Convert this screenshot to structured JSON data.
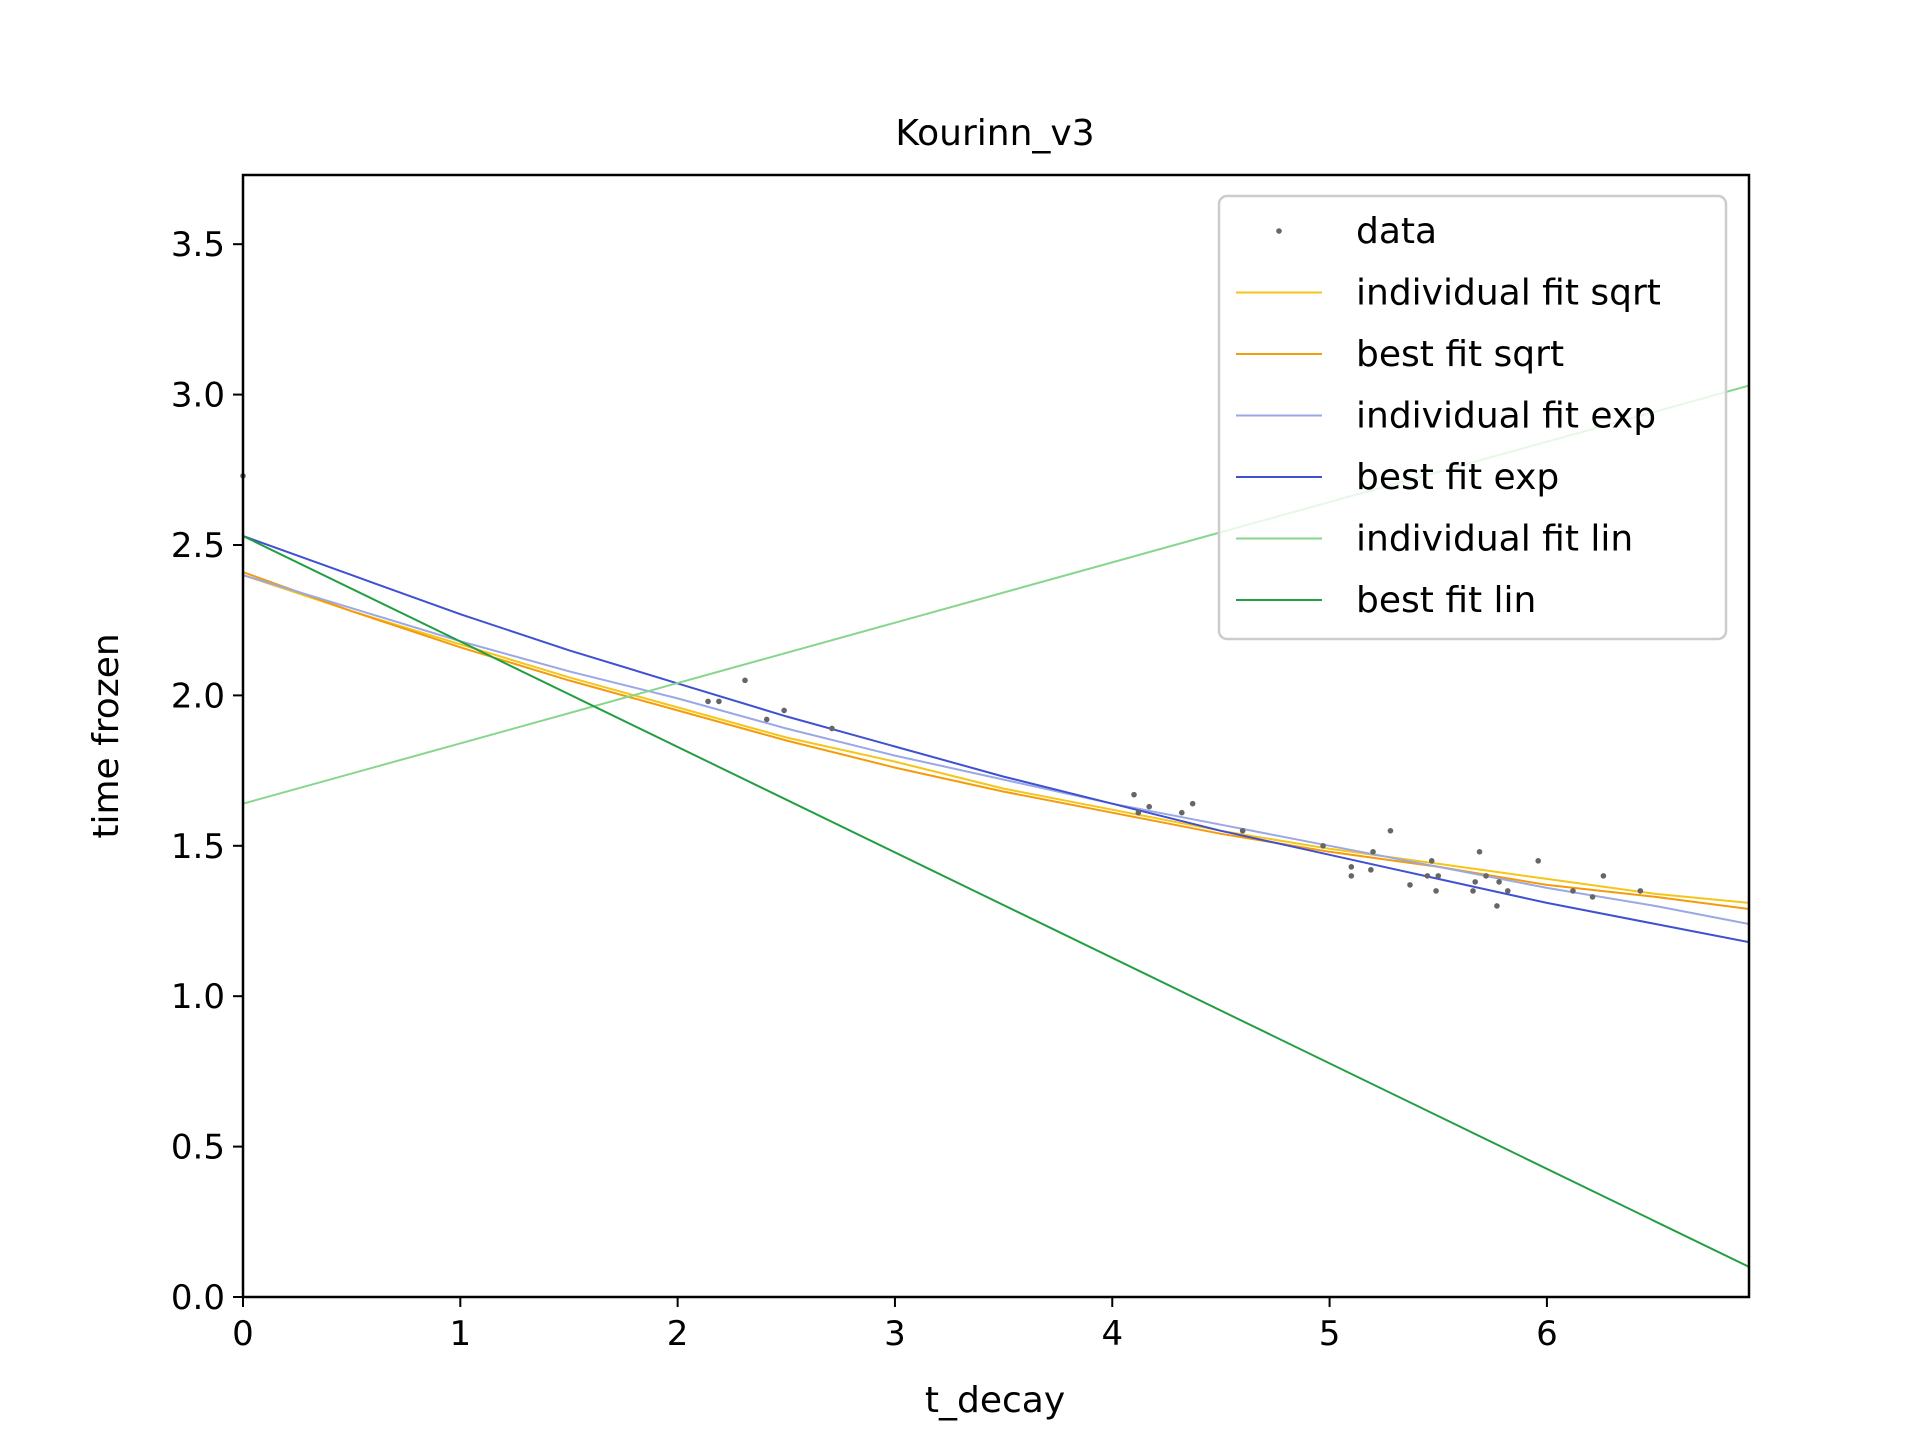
{
  "chart_data": {
    "type": "line",
    "title": "Kourinn_v3",
    "xlabel": "t_decay",
    "ylabel": "time frozen",
    "xlim": [
      0,
      6.93
    ],
    "ylim": [
      0,
      3.73
    ],
    "x_ticks": [
      0,
      1,
      2,
      3,
      4,
      5,
      6
    ],
    "x_tick_labels": [
      "0",
      "1",
      "2",
      "3",
      "4",
      "5",
      "6"
    ],
    "y_ticks": [
      0,
      0.5,
      1,
      1.5,
      2,
      2.5,
      3,
      3.5
    ],
    "y_tick_labels": [
      "0.0",
      "0.5",
      "1.0",
      "1.5",
      "2.0",
      "2.5",
      "3.0",
      "3.5"
    ],
    "grid": false,
    "legend_position": "top-right",
    "data": {
      "name": "data",
      "color": "#666666",
      "points": [
        [
          0.0,
          2.73
        ],
        [
          2.14,
          1.98
        ],
        [
          2.19,
          1.98
        ],
        [
          2.31,
          2.05
        ],
        [
          2.41,
          1.92
        ],
        [
          2.49,
          1.95
        ],
        [
          2.71,
          1.89
        ],
        [
          4.1,
          1.67
        ],
        [
          4.12,
          1.61
        ],
        [
          4.17,
          1.63
        ],
        [
          4.32,
          1.61
        ],
        [
          4.37,
          1.64
        ],
        [
          4.6,
          1.55
        ],
        [
          4.97,
          1.5
        ],
        [
          5.1,
          1.4
        ],
        [
          5.1,
          1.43
        ],
        [
          5.19,
          1.42
        ],
        [
          5.2,
          1.48
        ],
        [
          5.28,
          1.55
        ],
        [
          5.37,
          1.37
        ],
        [
          5.45,
          1.4
        ],
        [
          5.47,
          1.45
        ],
        [
          5.49,
          1.35
        ],
        [
          5.5,
          1.4
        ],
        [
          5.66,
          1.35
        ],
        [
          5.67,
          1.38
        ],
        [
          5.69,
          1.48
        ],
        [
          5.72,
          1.4
        ],
        [
          5.77,
          1.3
        ],
        [
          5.78,
          1.38
        ],
        [
          5.82,
          1.35
        ],
        [
          5.96,
          1.45
        ],
        [
          6.12,
          1.35
        ],
        [
          6.21,
          1.33
        ],
        [
          6.26,
          1.4
        ],
        [
          6.43,
          1.35
        ]
      ]
    },
    "series": [
      {
        "name": "individual fit sqrt",
        "color": "#f5c518",
        "x": [
          0,
          0.5,
          1,
          1.5,
          2,
          2.5,
          3,
          3.5,
          4,
          4.5,
          5,
          5.5,
          6,
          6.5,
          6.93
        ],
        "y": [
          2.4,
          2.28,
          2.17,
          2.06,
          1.96,
          1.86,
          1.78,
          1.69,
          1.62,
          1.55,
          1.49,
          1.44,
          1.39,
          1.34,
          1.31
        ]
      },
      {
        "name": "best fit sqrt",
        "color": "#f59a0a",
        "x": [
          0,
          0.5,
          1,
          1.5,
          2,
          2.5,
          3,
          3.5,
          4,
          4.5,
          5,
          5.5,
          6,
          6.5,
          6.93
        ],
        "y": [
          2.41,
          2.28,
          2.16,
          2.05,
          1.95,
          1.85,
          1.76,
          1.68,
          1.61,
          1.54,
          1.48,
          1.43,
          1.37,
          1.33,
          1.29
        ]
      },
      {
        "name": "individual fit exp",
        "color": "#9aa8e6",
        "x": [
          0,
          0.5,
          1,
          1.5,
          2,
          2.5,
          3,
          3.5,
          4,
          4.5,
          5,
          5.5,
          6,
          6.5,
          6.93
        ],
        "y": [
          2.4,
          2.29,
          2.18,
          2.08,
          1.99,
          1.89,
          1.8,
          1.72,
          1.64,
          1.57,
          1.5,
          1.43,
          1.36,
          1.3,
          1.24
        ]
      },
      {
        "name": "best fit exp",
        "color": "#3f51d0",
        "x": [
          0,
          0.5,
          1,
          1.5,
          2,
          2.5,
          3,
          3.5,
          4,
          4.5,
          5,
          5.5,
          6,
          6.5,
          6.93
        ],
        "y": [
          2.53,
          2.4,
          2.27,
          2.15,
          2.04,
          1.93,
          1.83,
          1.73,
          1.64,
          1.55,
          1.47,
          1.39,
          1.31,
          1.24,
          1.18
        ]
      },
      {
        "name": "individual fit lin",
        "color": "#86d68c",
        "x": [
          0,
          6.93
        ],
        "y": [
          1.64,
          3.03
        ]
      },
      {
        "name": "best fit lin",
        "color": "#239e42",
        "x": [
          0,
          6.93
        ],
        "y": [
          2.53,
          0.1
        ]
      }
    ]
  }
}
